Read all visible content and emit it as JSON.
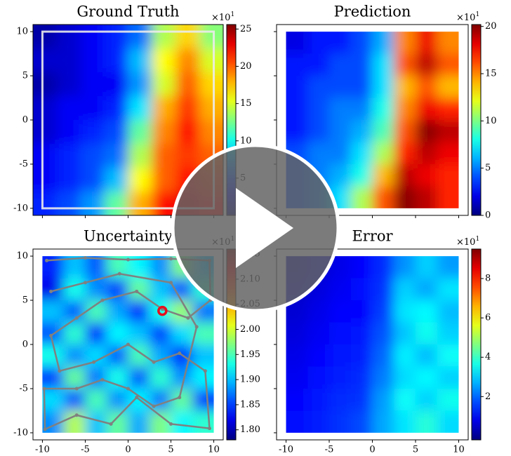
{
  "chart_data": [
    {
      "type": "heatmap",
      "title": "Ground Truth",
      "offset_text": "×10",
      "offset_exp": "1",
      "xlim": [
        -11.1,
        11.1
      ],
      "ylim": [
        -10.8,
        10.8
      ],
      "extent": [
        -11.1,
        11.1,
        -10.8,
        10.8
      ],
      "xticks": [
        -10,
        -5,
        0,
        5,
        10
      ],
      "yticks": [
        -10,
        -5,
        0,
        5,
        10
      ],
      "show_xtick_labels": false,
      "show_ytick_labels": true,
      "frame_square": [
        -10,
        10
      ],
      "clim": [
        0,
        25.6
      ],
      "cticks": [
        5,
        10,
        15,
        20,
        25
      ],
      "colormap": "jet",
      "z": [
        [
          1,
          2,
          3,
          4,
          6,
          14,
          17,
          13
        ],
        [
          2,
          2,
          3,
          4,
          8,
          16,
          19,
          15
        ],
        [
          1,
          2,
          3,
          3,
          7,
          15,
          20,
          17
        ],
        [
          2,
          3,
          3,
          4,
          9,
          18,
          21,
          18
        ],
        [
          2,
          3,
          4,
          5,
          12,
          19,
          22,
          19
        ],
        [
          3,
          4,
          5,
          6,
          14,
          20,
          21,
          20
        ],
        [
          3,
          4,
          5,
          8,
          16,
          20,
          22,
          21
        ],
        [
          4,
          5,
          7,
          12,
          18,
          22,
          23,
          22
        ]
      ]
    },
    {
      "type": "heatmap",
      "title": "Prediction",
      "offset_text": "×10",
      "offset_exp": "1",
      "xlim": [
        -11.1,
        11.1
      ],
      "ylim": [
        -10.8,
        10.8
      ],
      "extent": [
        -10,
        10,
        -10,
        10
      ],
      "xticks": [
        -10,
        -5,
        0,
        5,
        10
      ],
      "yticks": [
        -10,
        -5,
        0,
        5,
        10
      ],
      "show_xtick_labels": false,
      "show_ytick_labels": false,
      "clim": [
        0,
        20.2
      ],
      "cticks": [
        0,
        5,
        10,
        15,
        20
      ],
      "colormap": "jet",
      "z": [
        [
          2,
          3,
          3,
          4,
          6,
          15,
          18,
          15
        ],
        [
          3,
          3,
          4,
          4,
          7,
          16,
          19,
          16
        ],
        [
          3,
          4,
          4,
          4,
          7,
          14,
          16,
          14
        ],
        [
          3,
          4,
          5,
          5,
          8,
          15,
          18,
          17
        ],
        [
          3,
          4,
          5,
          6,
          9,
          16,
          20,
          19
        ],
        [
          4,
          5,
          5,
          7,
          11,
          17,
          19,
          18
        ],
        [
          4,
          5,
          6,
          8,
          14,
          19,
          18,
          17
        ],
        [
          4,
          5,
          7,
          11,
          16,
          20,
          19,
          17
        ]
      ]
    },
    {
      "type": "heatmap",
      "title": "Uncertainty",
      "offset_text": "×10",
      "offset_exp": "1",
      "xlim": [
        -11.1,
        11.1
      ],
      "ylim": [
        -10.8,
        10.8
      ],
      "extent": [
        -10,
        10,
        -10,
        10
      ],
      "xticks": [
        -10,
        -5,
        0,
        5,
        10
      ],
      "yticks": [
        -10,
        -5,
        0,
        5,
        10
      ],
      "show_xtick_labels": true,
      "show_ytick_labels": true,
      "clim": [
        1.78,
        2.16
      ],
      "cticks": [
        {
          "value": 1.8,
          "label": "1.80"
        },
        1.85,
        {
          "value": 1.9,
          "label": "1.90"
        },
        1.95,
        {
          "value": 2,
          "label": "2.00"
        },
        2.05,
        {
          "value": 2.1,
          "label": "2.10"
        },
        2.15
      ],
      "colormap": "jet",
      "z": [
        [
          1.84,
          1.9,
          1.86,
          1.95,
          1.92,
          1.88,
          1.97,
          1.9
        ],
        [
          1.82,
          1.93,
          1.88,
          1.85,
          1.96,
          1.9,
          1.86,
          1.94
        ],
        [
          1.9,
          1.86,
          1.95,
          1.89,
          1.84,
          1.93,
          1.98,
          1.87
        ],
        [
          1.86,
          1.94,
          1.84,
          1.92,
          1.9,
          1.85,
          1.91,
          1.95
        ],
        [
          1.93,
          1.88,
          1.91,
          1.86,
          1.95,
          1.89,
          1.84,
          1.9
        ],
        [
          1.85,
          1.96,
          1.87,
          1.93,
          1.86,
          1.94,
          1.88,
          1.92
        ],
        [
          1.91,
          1.86,
          1.95,
          1.88,
          1.92,
          1.87,
          1.96,
          1.85
        ],
        [
          1.88,
          1.99,
          1.9,
          1.96,
          1.89,
          1.97,
          1.92,
          1.94
        ]
      ],
      "trajectory": {
        "color": "#808080",
        "x": [
          -9.5,
          -5,
          0,
          5,
          9.5,
          9.6,
          7,
          4,
          1,
          -3,
          -6,
          -9,
          -8,
          -4,
          0,
          3,
          6,
          9,
          9.5,
          5,
          1,
          -2,
          -6,
          -9.7,
          -9.8,
          -6,
          -3,
          0,
          3,
          6,
          8,
          5,
          -1,
          -5,
          -9
        ],
        "y": [
          9.5,
          9.8,
          9.6,
          9.7,
          9.5,
          5,
          3,
          4,
          6,
          5,
          3,
          1,
          -3,
          -2,
          0,
          -2,
          -1,
          -3,
          -9.5,
          -9,
          -6,
          -9,
          -8,
          -9.6,
          -5,
          -5,
          -4,
          -5,
          -7,
          -6,
          2,
          7,
          8,
          7,
          6
        ]
      },
      "current": {
        "x": 4,
        "y": 3.8,
        "color": "#e8101c"
      }
    },
    {
      "type": "heatmap",
      "title": "Error",
      "offset_text": "×10",
      "offset_exp": "1",
      "xlim": [
        -11.1,
        11.1
      ],
      "ylim": [
        -10.8,
        10.8
      ],
      "extent": [
        -10,
        10,
        -10,
        10
      ],
      "xticks": [
        -10,
        -5,
        0,
        5,
        10
      ],
      "yticks": [
        -10,
        -5,
        0,
        5,
        10
      ],
      "show_xtick_labels": true,
      "show_ytick_labels": false,
      "clim": [
        -0.2,
        9.5
      ],
      "cticks": [
        2,
        4,
        6,
        8
      ],
      "colormap": "jet",
      "z": [
        [
          0.3,
          0.6,
          0.8,
          1.0,
          1.4,
          2.4,
          3.0,
          2.5
        ],
        [
          0.5,
          0.7,
          0.9,
          1.1,
          1.5,
          3.0,
          2.6,
          3.2
        ],
        [
          0.6,
          0.8,
          1.0,
          1.0,
          1.6,
          3.2,
          3.4,
          2.8
        ],
        [
          0.7,
          0.9,
          1.1,
          1.2,
          1.8,
          2.9,
          3.6,
          3.0
        ],
        [
          0.8,
          1.0,
          1.2,
          1.3,
          2.0,
          3.3,
          2.8,
          3.5
        ],
        [
          0.9,
          1.1,
          1.3,
          1.4,
          2.2,
          3.1,
          3.4,
          3.0
        ],
        [
          1.0,
          1.2,
          1.4,
          1.5,
          2.5,
          3.5,
          3.0,
          3.6
        ],
        [
          1.1,
          1.3,
          1.5,
          1.7,
          2.6,
          3.2,
          3.8,
          3.1
        ]
      ]
    }
  ]
}
